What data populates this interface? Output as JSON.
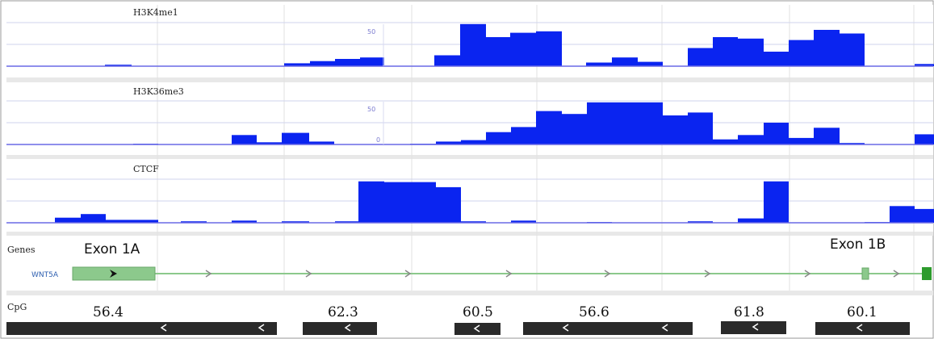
{
  "tracks": [
    {
      "id": "h3k4me1",
      "label": "H3K4me1",
      "scale_top": "50",
      "scale_bottom": "",
      "bins": [
        [
          130,
          163,
          2
        ],
        [
          352,
          384,
          4
        ],
        [
          384,
          415,
          7
        ],
        [
          415,
          446,
          10
        ],
        [
          446,
          476,
          12
        ],
        [
          538,
          570,
          15
        ],
        [
          570,
          602,
          58
        ],
        [
          602,
          632,
          40
        ],
        [
          632,
          664,
          46
        ],
        [
          664,
          696,
          48
        ],
        [
          726,
          758,
          5
        ],
        [
          758,
          790,
          12
        ],
        [
          790,
          821,
          6
        ],
        [
          852,
          883,
          25
        ],
        [
          883,
          914,
          40
        ],
        [
          914,
          946,
          38
        ],
        [
          946,
          977,
          20
        ],
        [
          977,
          1008,
          36
        ],
        [
          1008,
          1040,
          50
        ],
        [
          1040,
          1071,
          45
        ],
        [
          1133,
          1157,
          3
        ]
      ]
    },
    {
      "id": "h3k36me3",
      "label": "H3K36me3",
      "scale_top": "50",
      "scale_bottom": "0",
      "bins": [
        [
          165,
          196,
          1
        ],
        [
          287,
          318,
          13
        ],
        [
          318,
          349,
          3
        ],
        [
          349,
          383,
          16
        ],
        [
          383,
          414,
          4
        ],
        [
          508,
          540,
          1
        ],
        [
          540,
          571,
          4
        ],
        [
          571,
          602,
          6
        ],
        [
          602,
          633,
          17
        ],
        [
          633,
          664,
          24
        ],
        [
          664,
          696,
          46
        ],
        [
          696,
          727,
          42
        ],
        [
          727,
          821,
          58
        ],
        [
          821,
          852,
          40
        ],
        [
          852,
          883,
          44
        ],
        [
          883,
          914,
          7
        ],
        [
          914,
          946,
          13
        ],
        [
          946,
          977,
          30
        ],
        [
          977,
          1008,
          9
        ],
        [
          1008,
          1040,
          23
        ],
        [
          1040,
          1071,
          2
        ],
        [
          1133,
          1157,
          14
        ]
      ]
    },
    {
      "id": "ctcf",
      "label": "CTCF",
      "scale_top": "",
      "scale_bottom": "",
      "bins": [
        [
          68,
          100,
          7
        ],
        [
          100,
          131,
          12
        ],
        [
          131,
          165,
          4
        ],
        [
          165,
          196,
          4
        ],
        [
          224,
          256,
          2
        ],
        [
          287,
          318,
          3
        ],
        [
          349,
          383,
          2
        ],
        [
          415,
          444,
          2
        ],
        [
          444,
          476,
          57
        ],
        [
          476,
          540,
          56
        ],
        [
          540,
          571,
          49
        ],
        [
          571,
          602,
          2
        ],
        [
          633,
          664,
          3
        ],
        [
          727,
          758,
          1
        ],
        [
          852,
          883,
          2
        ],
        [
          914,
          946,
          6
        ],
        [
          946,
          977,
          57
        ],
        [
          1071,
          1102,
          1
        ],
        [
          1102,
          1133,
          23
        ],
        [
          1133,
          1157,
          19
        ]
      ]
    }
  ],
  "genes": {
    "track_label": "Genes",
    "gene_name": "WNT5A",
    "exon_1a_label": "Exon 1A",
    "exon_1b_label": "Exon 1B",
    "color": "#8cc98c",
    "strand_color": "#888888"
  },
  "cpg": {
    "track_label": "CpG",
    "values": [
      "56.4",
      "62.3",
      "60.5",
      "56.6",
      "61.8",
      "60.1"
    ]
  },
  "colors": {
    "signal": "#0a24f0",
    "axis": "#6a6ae6",
    "grid": "#cfd3ee",
    "cpg_bar": "#2a2a2a"
  }
}
